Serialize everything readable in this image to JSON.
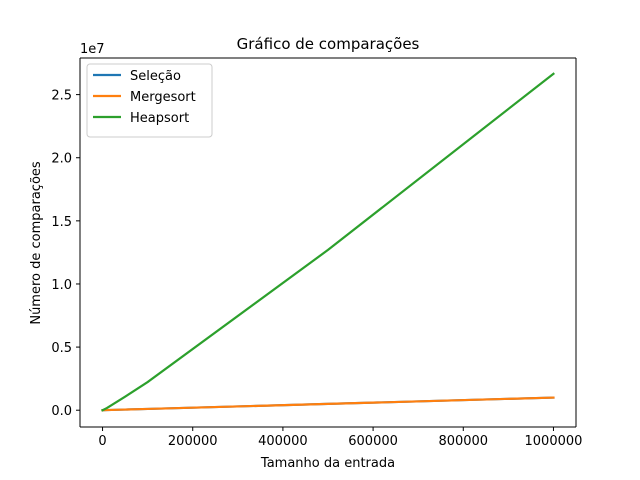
{
  "chart_data": {
    "type": "line",
    "title": "Gráfico de comparações",
    "xlabel": "Tamanho da entrada",
    "ylabel": "Número de comparações",
    "y_offset_label": "1e7",
    "y_scale": 10000000,
    "xlim": [
      -50000,
      1050000
    ],
    "ylim": [
      -1330000,
      27900000
    ],
    "x_ticks": [
      0,
      200000,
      400000,
      600000,
      800000,
      1000000
    ],
    "x_tick_labels": [
      "0",
      "200000",
      "400000",
      "600000",
      "800000",
      "1000000"
    ],
    "y_ticks": [
      0,
      5000000,
      10000000,
      15000000,
      20000000,
      25000000
    ],
    "y_tick_labels": [
      "0.0",
      "0.5",
      "1.0",
      "1.5",
      "2.0",
      "2.5"
    ],
    "grid": false,
    "legend_position": "top-left",
    "x": [
      0,
      10000,
      50000,
      100000,
      500000,
      1000000
    ],
    "series": [
      {
        "name": "Seleção",
        "color": "#1f77b4",
        "values": [
          0,
          10000,
          50000,
          100000,
          500000,
          1000000
        ]
      },
      {
        "name": "Mergesort",
        "color": "#ff7f0e",
        "values": [
          0,
          10000,
          50000,
          100000,
          500000,
          1000000
        ]
      },
      {
        "name": "Heapsort",
        "color": "#2ca02c",
        "values": [
          0,
          180000,
          1070000,
          2230000,
          12700000,
          26650000
        ]
      }
    ]
  }
}
